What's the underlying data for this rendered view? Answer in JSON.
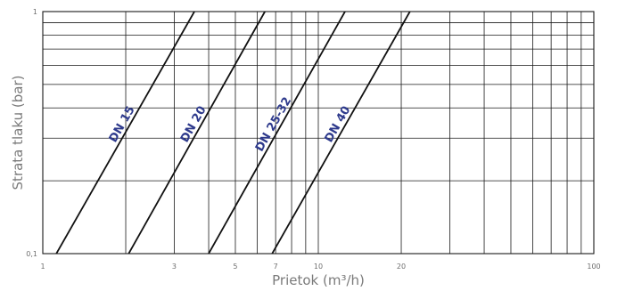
{
  "chart_data": {
    "type": "line",
    "title": "",
    "xlabel": "Prietok (m³/h)",
    "ylabel": "Strata tlaku (bar)",
    "x_scale": "log",
    "y_scale": "log",
    "xlim": [
      1,
      100
    ],
    "ylim": [
      0.1,
      1
    ],
    "x_ticks": [
      {
        "value": 1,
        "label": "1"
      },
      {
        "value": 3,
        "label": "3"
      },
      {
        "value": 5,
        "label": "5"
      },
      {
        "value": 7,
        "label": "7"
      },
      {
        "value": 10,
        "label": "10"
      },
      {
        "value": 20,
        "label": "20"
      },
      {
        "value": 100,
        "label": "100"
      }
    ],
    "y_ticks": [
      {
        "value": 0.1,
        "label": "0,1"
      },
      {
        "value": 1,
        "label": "1"
      }
    ],
    "grid": true,
    "series": [
      {
        "name": "DN 15",
        "x": [
          1.12,
          3.55
        ],
        "y": [
          0.1,
          1
        ]
      },
      {
        "name": "DN 20",
        "x": [
          2.05,
          6.4
        ],
        "y": [
          0.1,
          1
        ]
      },
      {
        "name": "DN 25-32",
        "x": [
          4.0,
          12.5
        ],
        "y": [
          0.1,
          1
        ]
      },
      {
        "name": "DN 40",
        "x": [
          6.8,
          21.5
        ],
        "y": [
          0.1,
          1
        ]
      }
    ]
  }
}
